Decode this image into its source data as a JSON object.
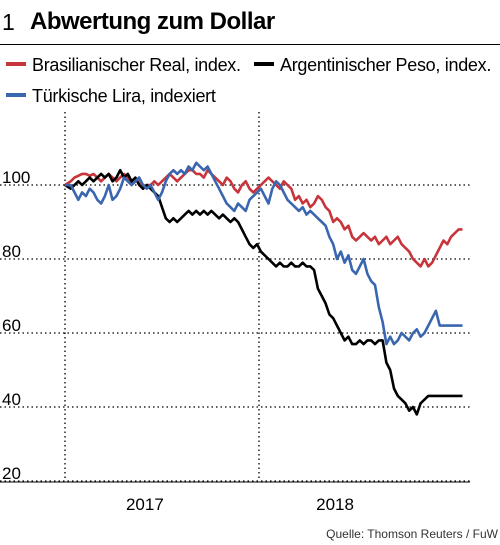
{
  "figure": {
    "number": "1",
    "title": "Abwertung zum Dollar",
    "source": "Quelle: Thomson Reuters / FuW"
  },
  "legend": [
    {
      "label": "Brasilianischer Real, index.",
      "color": "#c8343b"
    },
    {
      "label": "Argentinischer Peso, index.",
      "color": "#000000"
    },
    {
      "label": "Türkische Lira, indexiert",
      "color": "#3a66b0"
    }
  ],
  "chart_data": {
    "type": "line",
    "title": "Abwertung zum Dollar",
    "xlabel": "",
    "ylabel": "",
    "x_range": [
      2016.58,
      2018.72
    ],
    "ylim": [
      20,
      110
    ],
    "y_ticks": [
      20,
      40,
      60,
      80,
      100
    ],
    "x_tick_labels": [
      {
        "label": "2017",
        "x": 2017.0
      },
      {
        "label": "2018",
        "x": 2018.0
      }
    ],
    "grid": "dotted",
    "series": [
      {
        "name": "Brasilianischer Real, index.",
        "color": "#c8343b",
        "x": [
          2016.58,
          2016.61,
          2016.63,
          2016.65,
          2016.67,
          2016.69,
          2016.71,
          2016.73,
          2016.75,
          2016.77,
          2016.79,
          2016.81,
          2016.83,
          2016.85,
          2016.87,
          2016.89,
          2016.91,
          2016.93,
          2016.95,
          2016.97,
          2016.99,
          2017.01,
          2017.03,
          2017.05,
          2017.07,
          2017.09,
          2017.11,
          2017.13,
          2017.15,
          2017.17,
          2017.19,
          2017.21,
          2017.23,
          2017.25,
          2017.27,
          2017.29,
          2017.31,
          2017.33,
          2017.35,
          2017.37,
          2017.39,
          2017.41,
          2017.43,
          2017.45,
          2017.47,
          2017.49,
          2017.51,
          2017.53,
          2017.55,
          2017.57,
          2017.59,
          2017.61,
          2017.63,
          2017.65,
          2017.67,
          2017.69,
          2017.71,
          2017.73,
          2017.75,
          2017.77,
          2017.79,
          2017.81,
          2017.83,
          2017.85,
          2017.87,
          2017.89,
          2017.91,
          2017.93,
          2017.95,
          2017.97,
          2017.99,
          2018.01,
          2018.03,
          2018.05,
          2018.07,
          2018.09,
          2018.11,
          2018.13,
          2018.15,
          2018.17,
          2018.19,
          2018.21,
          2018.23,
          2018.25,
          2018.27,
          2018.29,
          2018.31,
          2018.33,
          2018.35,
          2018.37,
          2018.39,
          2018.41,
          2018.43,
          2018.45,
          2018.47,
          2018.49,
          2018.51,
          2018.53,
          2018.55,
          2018.57,
          2018.59,
          2018.61,
          2018.63,
          2018.65,
          2018.67
        ],
        "y": [
          100,
          101,
          102,
          102.5,
          103,
          103,
          102.5,
          103,
          102,
          101,
          102,
          103,
          102,
          101,
          102,
          103,
          102,
          100,
          101,
          102,
          99,
          100,
          100,
          101,
          100,
          101,
          102,
          103,
          102,
          101,
          102,
          103,
          104,
          104,
          103,
          103,
          102,
          104,
          103,
          102,
          101,
          100,
          102,
          101,
          99,
          98,
          100,
          101,
          99,
          98,
          99,
          100,
          101,
          102,
          101,
          100,
          99,
          101,
          100,
          99,
          96,
          97,
          95,
          96,
          94,
          95,
          97,
          96,
          94,
          93,
          90,
          91,
          90,
          88,
          89,
          86,
          85,
          86,
          87,
          86,
          85,
          86,
          84,
          85,
          86,
          84,
          85,
          86,
          84,
          83,
          82,
          80,
          79,
          78,
          80,
          78,
          79,
          81,
          83,
          85,
          84,
          86,
          87,
          88,
          88
        ]
      },
      {
        "name": "Argentinischer Peso, index.",
        "color": "#000000",
        "x": [
          2016.58,
          2016.61,
          2016.63,
          2016.65,
          2016.67,
          2016.69,
          2016.71,
          2016.73,
          2016.75,
          2016.77,
          2016.79,
          2016.81,
          2016.83,
          2016.85,
          2016.87,
          2016.89,
          2016.91,
          2016.93,
          2016.95,
          2016.97,
          2016.99,
          2017.01,
          2017.03,
          2017.05,
          2017.07,
          2017.09,
          2017.11,
          2017.13,
          2017.15,
          2017.17,
          2017.19,
          2017.21,
          2017.23,
          2017.25,
          2017.27,
          2017.29,
          2017.31,
          2017.33,
          2017.35,
          2017.37,
          2017.39,
          2017.41,
          2017.43,
          2017.45,
          2017.47,
          2017.49,
          2017.51,
          2017.53,
          2017.55,
          2017.57,
          2017.59,
          2017.61,
          2017.63,
          2017.65,
          2017.67,
          2017.69,
          2017.71,
          2017.73,
          2017.75,
          2017.77,
          2017.79,
          2017.81,
          2017.83,
          2017.85,
          2017.87,
          2017.89,
          2017.91,
          2017.93,
          2017.95,
          2017.97,
          2017.99,
          2018.01,
          2018.03,
          2018.05,
          2018.07,
          2018.09,
          2018.11,
          2018.13,
          2018.15,
          2018.17,
          2018.19,
          2018.21,
          2018.23,
          2018.25,
          2018.27,
          2018.29,
          2018.31,
          2018.33,
          2018.35,
          2018.37,
          2018.39,
          2018.41,
          2018.43,
          2018.45,
          2018.47,
          2018.49,
          2018.51,
          2018.53,
          2018.55,
          2018.57,
          2018.59,
          2018.61,
          2018.63,
          2018.65,
          2018.67
        ],
        "y": [
          100,
          99,
          100,
          101,
          100,
          101,
          102,
          101,
          102,
          103,
          102,
          103,
          101,
          102,
          104,
          102,
          103,
          101,
          102,
          100,
          99,
          100,
          99,
          98,
          97,
          94,
          91,
          90,
          91,
          90,
          91,
          92,
          93,
          92,
          93,
          92,
          93,
          92,
          93,
          92,
          91,
          92,
          91,
          90,
          91,
          90,
          88,
          86,
          84,
          83,
          84,
          82,
          81,
          80,
          79,
          78,
          79,
          78,
          78,
          79,
          78,
          78,
          79,
          78,
          78,
          77,
          72,
          70,
          68,
          65,
          64,
          62,
          60,
          58,
          59,
          57,
          57,
          58,
          57,
          58,
          58,
          57,
          58,
          58,
          52,
          50,
          45,
          43,
          42,
          41,
          39,
          40,
          38,
          41,
          42,
          43,
          43,
          43,
          43,
          43,
          43,
          43,
          43,
          43,
          43
        ]
      },
      {
        "name": "Türkische Lira, indexiert",
        "color": "#3a66b0",
        "x": [
          2016.58,
          2016.61,
          2016.63,
          2016.65,
          2016.67,
          2016.69,
          2016.71,
          2016.73,
          2016.75,
          2016.77,
          2016.79,
          2016.81,
          2016.83,
          2016.85,
          2016.87,
          2016.89,
          2016.91,
          2016.93,
          2016.95,
          2016.97,
          2016.99,
          2017.01,
          2017.03,
          2017.05,
          2017.07,
          2017.09,
          2017.11,
          2017.13,
          2017.15,
          2017.17,
          2017.19,
          2017.21,
          2017.23,
          2017.25,
          2017.27,
          2017.29,
          2017.31,
          2017.33,
          2017.35,
          2017.37,
          2017.39,
          2017.41,
          2017.43,
          2017.45,
          2017.47,
          2017.49,
          2017.51,
          2017.53,
          2017.55,
          2017.57,
          2017.59,
          2017.61,
          2017.63,
          2017.65,
          2017.67,
          2017.69,
          2017.71,
          2017.73,
          2017.75,
          2017.77,
          2017.79,
          2017.81,
          2017.83,
          2017.85,
          2017.87,
          2017.89,
          2017.91,
          2017.93,
          2017.95,
          2017.97,
          2017.99,
          2018.01,
          2018.03,
          2018.05,
          2018.07,
          2018.09,
          2018.11,
          2018.13,
          2018.15,
          2018.17,
          2018.19,
          2018.21,
          2018.23,
          2018.25,
          2018.27,
          2018.29,
          2018.31,
          2018.33,
          2018.35,
          2018.37,
          2018.39,
          2018.41,
          2018.43,
          2018.45,
          2018.47,
          2018.49,
          2018.51,
          2018.53,
          2018.55,
          2018.57,
          2018.59,
          2018.61,
          2018.63,
          2018.65,
          2018.67
        ],
        "y": [
          100,
          100,
          98,
          96,
          98,
          97,
          99,
          98,
          96,
          95,
          97,
          100,
          96,
          97,
          99,
          102,
          101,
          100,
          101,
          102,
          100,
          99,
          100,
          98,
          96,
          98,
          101,
          103,
          104,
          103,
          104,
          103,
          105,
          104,
          106,
          105,
          104,
          105,
          103,
          101,
          99,
          97,
          95,
          94,
          93,
          95,
          94,
          93,
          96,
          97,
          98,
          99,
          97,
          95,
          99,
          101,
          100,
          98,
          96,
          95,
          94,
          93,
          94,
          92,
          93,
          92,
          91,
          90,
          89,
          86,
          84,
          80,
          82,
          79,
          81,
          77,
          76,
          78,
          80,
          76,
          74,
          73,
          67,
          63,
          57,
          59,
          57,
          58,
          60,
          59,
          58,
          60,
          61,
          59,
          60,
          62,
          64,
          66,
          62,
          62,
          62,
          62,
          62,
          62,
          62
        ]
      }
    ]
  }
}
